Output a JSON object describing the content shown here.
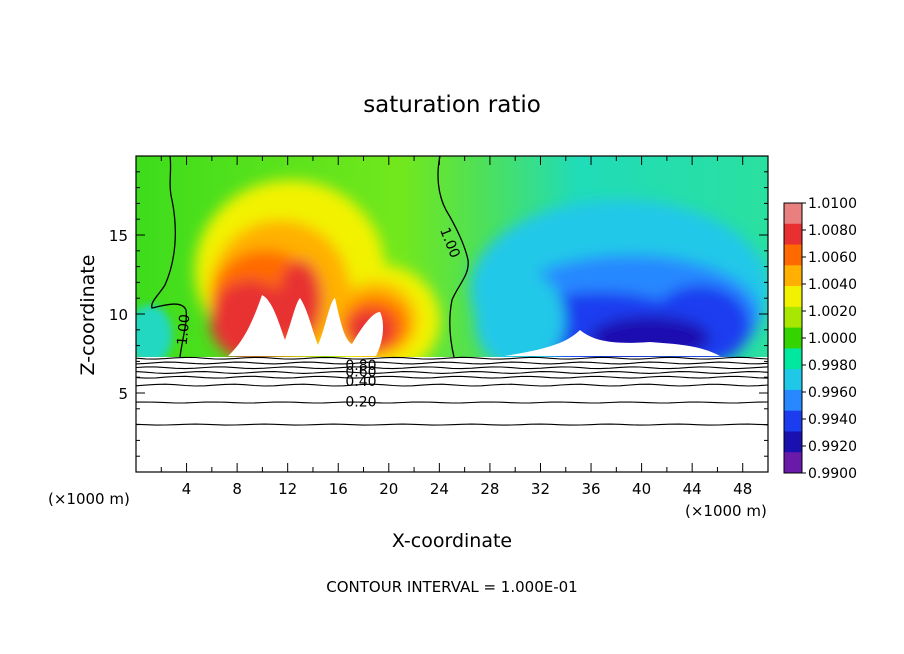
{
  "chart_data": {
    "type": "heatmap",
    "title": "saturation ratio",
    "xlabel": "X-coordinate",
    "ylabel": "Z-coordinate",
    "x_unit_left": "(×1000 m)",
    "x_unit_right": "(×1000 m)",
    "footer": "CONTOUR INTERVAL = 1.000E-01",
    "xlim": [
      0,
      50
    ],
    "ylim": [
      0,
      20
    ],
    "x_ticks": [
      4,
      8,
      12,
      16,
      20,
      24,
      28,
      32,
      36,
      40,
      44,
      48
    ],
    "y_ticks": [
      5,
      10,
      15
    ],
    "x_tick_labels": [
      "4",
      "8",
      "12",
      "16",
      "20",
      "24",
      "28",
      "32",
      "36",
      "40",
      "44",
      "48"
    ],
    "y_tick_labels": [
      "5",
      "10",
      "15"
    ],
    "colorbar": {
      "labels": [
        "1.0100",
        "1.0080",
        "1.0060",
        "1.0040",
        "1.0020",
        "1.0000",
        "0.9980",
        "0.9960",
        "0.9940",
        "0.9920",
        "0.9900"
      ],
      "colors": [
        "#e88080",
        "#e83030",
        "#ff6a00",
        "#ffb000",
        "#f2f200",
        "#a8e800",
        "#33d400",
        "#00e8a0",
        "#20c8e8",
        "#2888ff",
        "#1c3cf0",
        "#1a10b0",
        "#6a1aa8"
      ]
    },
    "contour_labels": [
      {
        "text": "1.00",
        "x": 3.8,
        "z": 9.0,
        "angle": -85
      },
      {
        "text": "1.00",
        "x": 24.8,
        "z": 14.5,
        "angle": 68
      },
      {
        "text": "0.80",
        "x": 17.8,
        "z": 6.7,
        "angle": 0
      },
      {
        "text": "0.60",
        "x": 17.8,
        "z": 6.3,
        "angle": 0
      },
      {
        "text": "0.40",
        "x": 17.8,
        "z": 5.7,
        "angle": 0
      },
      {
        "text": "0.20",
        "x": 17.8,
        "z": 4.4,
        "angle": 0
      }
    ],
    "low_contours_z": [
      7.2,
      6.9,
      6.6,
      6.3,
      6.0,
      5.5,
      4.4,
      3.0
    ],
    "top_of_boundary_layer_z": 7.3,
    "warm_core_x": [
      10,
      13,
      16.5,
      19
    ],
    "dry_core_x": [
      30,
      36,
      42,
      46
    ]
  }
}
